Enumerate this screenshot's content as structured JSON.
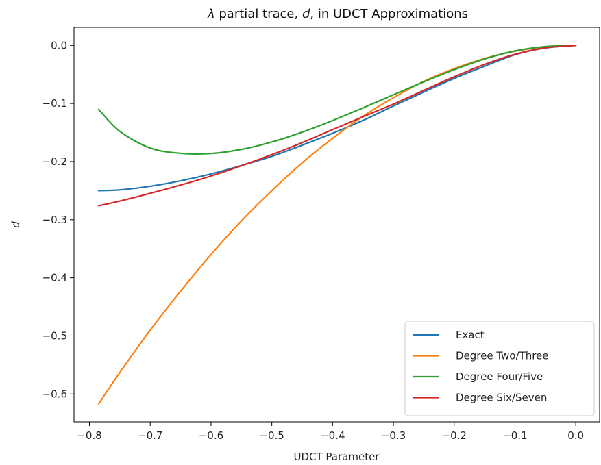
{
  "chart_data": {
    "type": "line",
    "title": {
      "prefix": "λ",
      "middle": " partial trace, ",
      "var": "d",
      "suffix": ", in UDCT Approximations"
    },
    "xlabel": "UDCT Parameter",
    "ylabel": "d",
    "xlim": [
      -0.8254,
      0.0393
    ],
    "ylim": [
      -0.648,
      0.031
    ],
    "xticks": [
      -0.8,
      -0.7,
      -0.6,
      -0.5,
      -0.4,
      -0.3,
      -0.2,
      -0.1,
      0.0
    ],
    "xtick_labels": [
      "−0.8",
      "−0.7",
      "−0.6",
      "−0.5",
      "−0.4",
      "−0.3",
      "−0.2",
      "−0.1",
      "0.0"
    ],
    "yticks": [
      0.0,
      -0.1,
      -0.2,
      -0.3,
      -0.4,
      -0.5,
      -0.6
    ],
    "ytick_labels": [
      "0.0",
      "−0.1",
      "−0.2",
      "−0.3",
      "−0.4",
      "−0.5",
      "−0.6"
    ],
    "grid": false,
    "legend_position": "lower-right",
    "x": [
      -0.785,
      -0.75,
      -0.7,
      -0.65,
      -0.6,
      -0.55,
      -0.5,
      -0.45,
      -0.4,
      -0.35,
      -0.3,
      -0.25,
      -0.2,
      -0.15,
      -0.1,
      -0.05,
      0.0
    ],
    "series": [
      {
        "name": "Exact",
        "color": "#1f77b4",
        "values": [
          -0.25,
          -0.2487,
          -0.2424,
          -0.2331,
          -0.2212,
          -0.2068,
          -0.191,
          -0.1717,
          -0.1512,
          -0.1291,
          -0.1043,
          -0.0802,
          -0.0569,
          -0.0359,
          -0.0161,
          -0.0044,
          -0.0
        ]
      },
      {
        "name": "Degree Two/Three",
        "color": "#ff7f0e",
        "values": [
          -0.617,
          -0.563,
          -0.49,
          -0.423,
          -0.36,
          -0.302,
          -0.25,
          -0.202,
          -0.16,
          -0.122,
          -0.09,
          -0.062,
          -0.04,
          -0.0225,
          -0.01,
          -0.0025,
          0.0
        ]
      },
      {
        "name": "Degree Four/Five",
        "color": "#2ca02c",
        "values": [
          -0.11,
          -0.1479,
          -0.1767,
          -0.1858,
          -0.1861,
          -0.179,
          -0.1663,
          -0.1493,
          -0.1293,
          -0.1075,
          -0.085,
          -0.0628,
          -0.0418,
          -0.0233,
          -0.0095,
          -0.0019,
          0.0
        ]
      },
      {
        "name": "Degree Six/Seven",
        "color": "#d62728",
        "values": [
          -0.276,
          -0.2679,
          -0.2546,
          -0.2404,
          -0.2248,
          -0.207,
          -0.188,
          -0.1673,
          -0.145,
          -0.1228,
          -0.101,
          -0.0774,
          -0.0541,
          -0.0327,
          -0.0154,
          -0.0042,
          0.0
        ]
      }
    ]
  }
}
